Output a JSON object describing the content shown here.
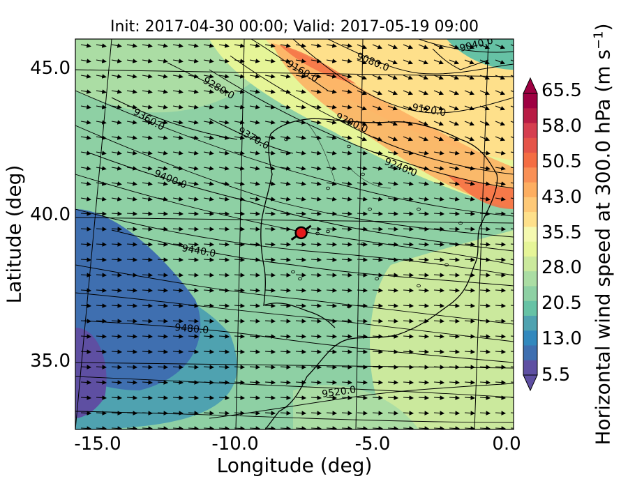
{
  "title": "Init: 2017-04-30 00:00; Valid: 2017-05-19 09:00",
  "xlabel": "Longitude (deg)",
  "ylabel": "Latitude (deg)",
  "x_ticks": [
    "-15.0",
    "-10.0",
    "-5.0",
    "0.0"
  ],
  "y_ticks": [
    "45.0",
    "40.0",
    "35.0"
  ],
  "colorbar": {
    "label": "Horizontal wind speed at 300.0 hPa (m s$^{-1}$)",
    "label_text": "Horizontal wind speed at 300.0 hPa (m s",
    "label_exp": "−1",
    "label_close": ")",
    "ticks": [
      "65.5",
      "58.0",
      "50.5",
      "43.0",
      "35.5",
      "28.0",
      "20.5",
      "13.0",
      "5.5"
    ],
    "colors": [
      "#5e4fa2",
      "#3f6fb0",
      "#3288bd",
      "#4fa2b0",
      "#66c2a5",
      "#8ed0a4",
      "#abdda4",
      "#cbe99d",
      "#e6f598",
      "#f5f9b0",
      "#fee08b",
      "#fec978",
      "#fdae61",
      "#f99056",
      "#f46d43",
      "#e55449",
      "#d53e4f",
      "#b81c45",
      "#9e0142"
    ]
  },
  "chart_data": {
    "type": "heatmap",
    "variable": "Horizontal wind speed at 300.0 hPa",
    "units": "m s^-1",
    "colorbar_range": [
      5.5,
      65.5
    ],
    "xlim": [
      -16,
      0.3
    ],
    "ylim": [
      32.6,
      45.9
    ],
    "contours_label": [
      "9040.0",
      "9080.0",
      "9120.0",
      "9160.0",
      "9200.0",
      "9240.0",
      "9280.0",
      "9360.0",
      "9370.0",
      "9400.0",
      "9440.0",
      "9480.0",
      "9520.0"
    ],
    "marker": {
      "lon": -7.6,
      "lat": 39.3
    }
  }
}
